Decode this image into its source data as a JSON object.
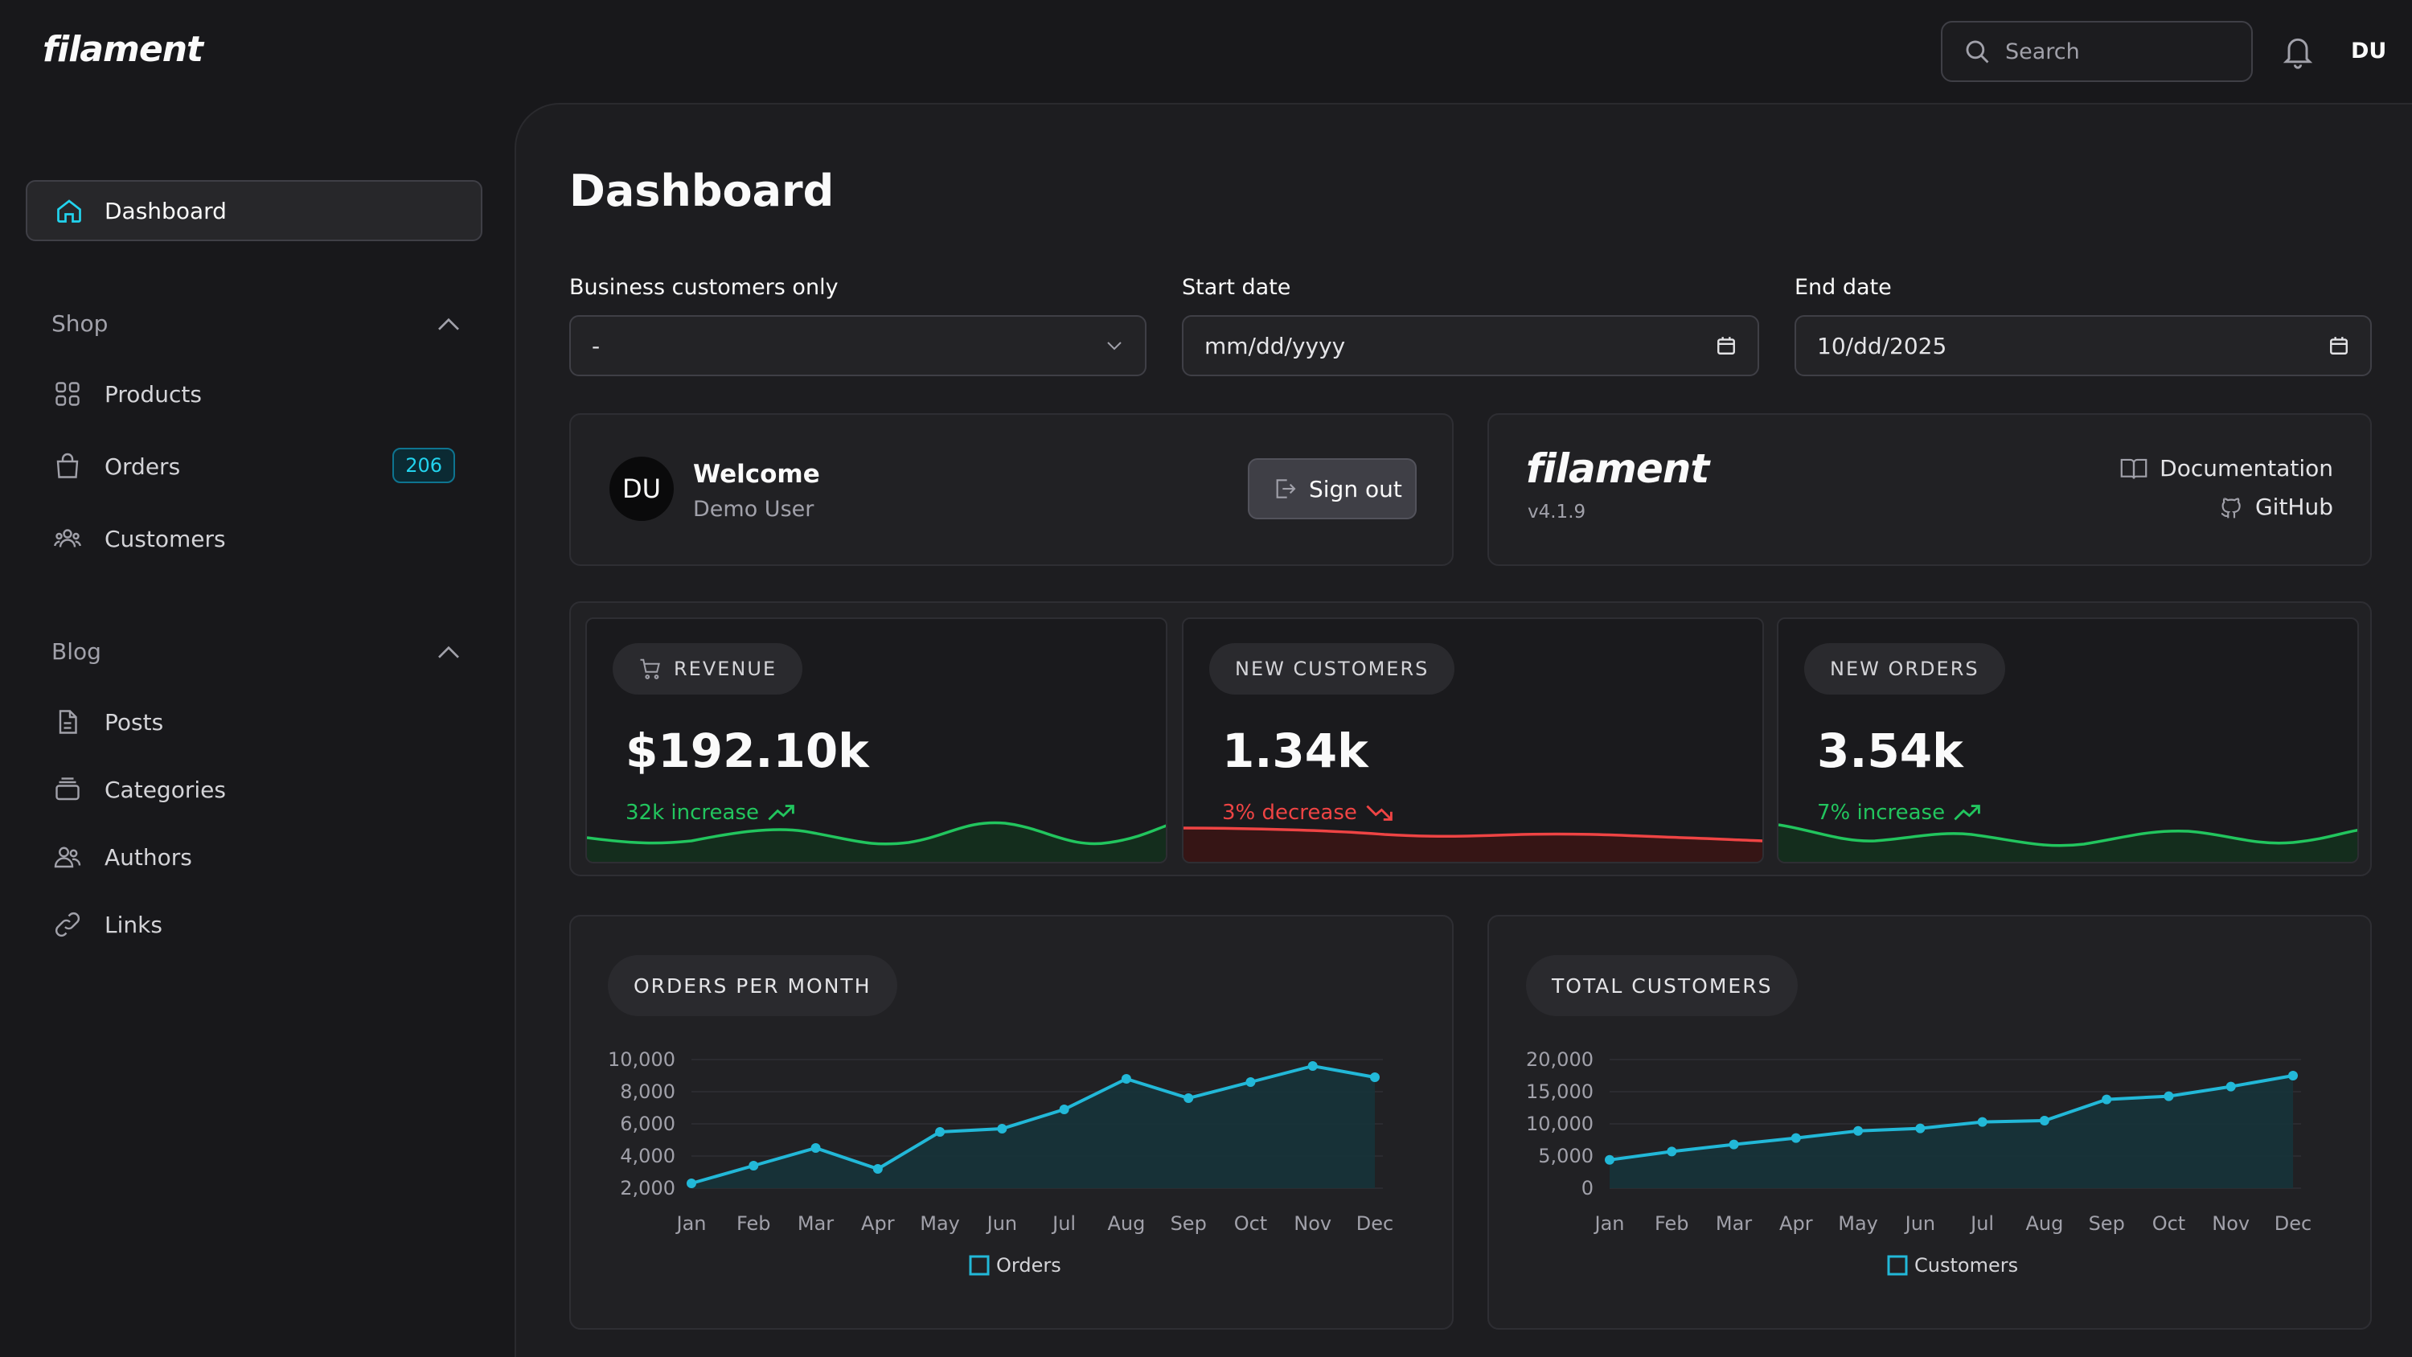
{
  "app": {
    "logo": "filament",
    "search_placeholder": "Search",
    "user_initials": "DU"
  },
  "sidebar": {
    "active": {
      "label": "Dashboard",
      "icon": "home-icon"
    },
    "groups": [
      {
        "label": "Shop",
        "items": [
          {
            "label": "Products",
            "icon": "grid-icon"
          },
          {
            "label": "Orders",
            "icon": "bag-icon",
            "badge": "206"
          },
          {
            "label": "Customers",
            "icon": "users-group-icon"
          }
        ]
      },
      {
        "label": "Blog",
        "items": [
          {
            "label": "Posts",
            "icon": "document-icon"
          },
          {
            "label": "Categories",
            "icon": "folder-icon"
          },
          {
            "label": "Authors",
            "icon": "users-icon"
          },
          {
            "label": "Links",
            "icon": "link-icon"
          }
        ]
      }
    ]
  },
  "page": {
    "title": "Dashboard"
  },
  "filters": {
    "business": {
      "label": "Business customers only",
      "value": "-"
    },
    "start_date": {
      "label": "Start date",
      "value": "mm/dd/yyyy"
    },
    "end_date": {
      "label": "End date",
      "value": "10/dd/2025"
    }
  },
  "welcome": {
    "initials": "DU",
    "title": "Welcome",
    "subtitle": "Demo User",
    "signout_label": "Sign out"
  },
  "filament_info": {
    "logo": "filament",
    "version": "v4.1.9",
    "docs_label": "Documentation",
    "github_label": "GitHub"
  },
  "stats": [
    {
      "label": "REVENUE",
      "value": "$192.10k",
      "desc": "32k increase",
      "trend": "up",
      "color": "#22c55e"
    },
    {
      "label": "NEW CUSTOMERS",
      "value": "1.34k",
      "desc": "3% decrease",
      "trend": "down",
      "color": "#ef4444"
    },
    {
      "label": "NEW ORDERS",
      "value": "3.54k",
      "desc": "7% increase",
      "trend": "up",
      "color": "#22c55e"
    }
  ],
  "chart_data": [
    {
      "type": "area",
      "title": "ORDERS PER MONTH",
      "categories": [
        "Jan",
        "Feb",
        "Mar",
        "Apr",
        "May",
        "Jun",
        "Jul",
        "Aug",
        "Sep",
        "Oct",
        "Nov",
        "Dec"
      ],
      "series": [
        {
          "name": "Orders",
          "values": [
            2300,
            3400,
            4500,
            3200,
            5500,
            5700,
            6900,
            8800,
            7600,
            8600,
            9600,
            8900
          ]
        }
      ],
      "ylim": [
        2000,
        10000
      ],
      "yticks": [
        "10,000",
        "8,000",
        "6,000",
        "4,000",
        "2,000"
      ],
      "color": "#22b8d8"
    },
    {
      "type": "area",
      "title": "TOTAL CUSTOMERS",
      "categories": [
        "Jan",
        "Feb",
        "Mar",
        "Apr",
        "May",
        "Jun",
        "Jul",
        "Aug",
        "Sep",
        "Oct",
        "Nov",
        "Dec"
      ],
      "series": [
        {
          "name": "Customers",
          "values": [
            4400,
            5700,
            6800,
            7800,
            8900,
            9300,
            10300,
            10500,
            13800,
            14300,
            15800,
            17500
          ]
        }
      ],
      "ylim": [
        0,
        20000
      ],
      "yticks": [
        "20,000",
        "15,000",
        "10,000",
        "5,000",
        "0"
      ],
      "color": "#22b8d8"
    }
  ]
}
